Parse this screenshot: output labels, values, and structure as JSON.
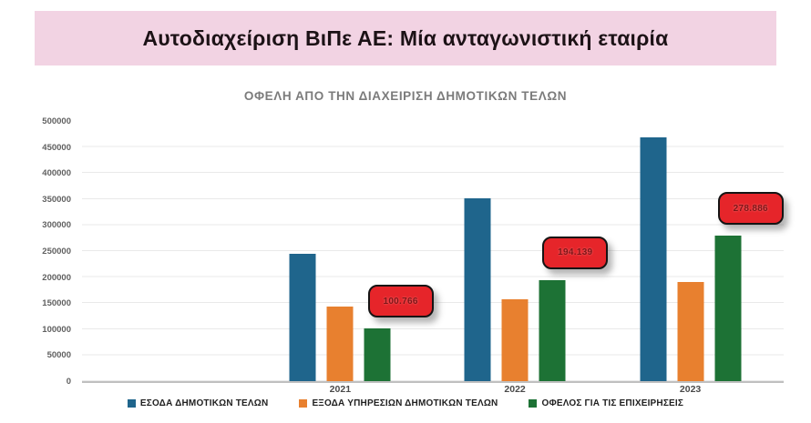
{
  "banner": {
    "title": "Αυτοδιαχείριση ΒιΠε ΑΕ: Μία ανταγωνιστική εταιρία",
    "bg_color": "#f2d3e3",
    "text_color": "#1c1216"
  },
  "chart_data": {
    "type": "bar",
    "title": "ΟΦΕΛΗ ΑΠΟ ΤΗΝ ΔΙΑΧΕΙΡΙΣΗ ΔΗΜΟΤΙΚΩΝ ΤΕΛΩΝ",
    "categories": [
      "2021",
      "2022",
      "2023"
    ],
    "series": [
      {
        "name": "ΕΣΟΔΑ ΔΗΜΟΤΙΚΩΝ ΤΕΛΩΝ",
        "color": "#1f658c",
        "values": [
          245000,
          352000,
          469000
        ]
      },
      {
        "name": "ΕΞΟΔΑ ΥΠΗΡΕΣΙΩΝ ΔΗΜΟΤΙΚΩΝ ΤΕΛΩΝ",
        "color": "#e8802f",
        "values": [
          144000,
          158000,
          190000
        ]
      },
      {
        "name": "ΟΦΕΛΟΣ ΓΙΑ ΤΙΣ ΕΠΙΧΕΙΡΗΣΕΙΣ",
        "color": "#1d7235",
        "values": [
          100766,
          194139,
          278886
        ]
      }
    ],
    "data_labels": [
      "100.766",
      "194.139",
      "278.886"
    ],
    "data_label_style": {
      "bg": "#e6252a",
      "border": "#141414",
      "text": "#7e1517"
    },
    "ylim": [
      0,
      500000
    ],
    "ytick_step": 50000,
    "yticks": [
      "0",
      "50000",
      "100000",
      "150000",
      "200000",
      "250000",
      "300000",
      "350000",
      "400000",
      "450000",
      "500000"
    ],
    "grid": true,
    "legend_position": "bottom"
  }
}
